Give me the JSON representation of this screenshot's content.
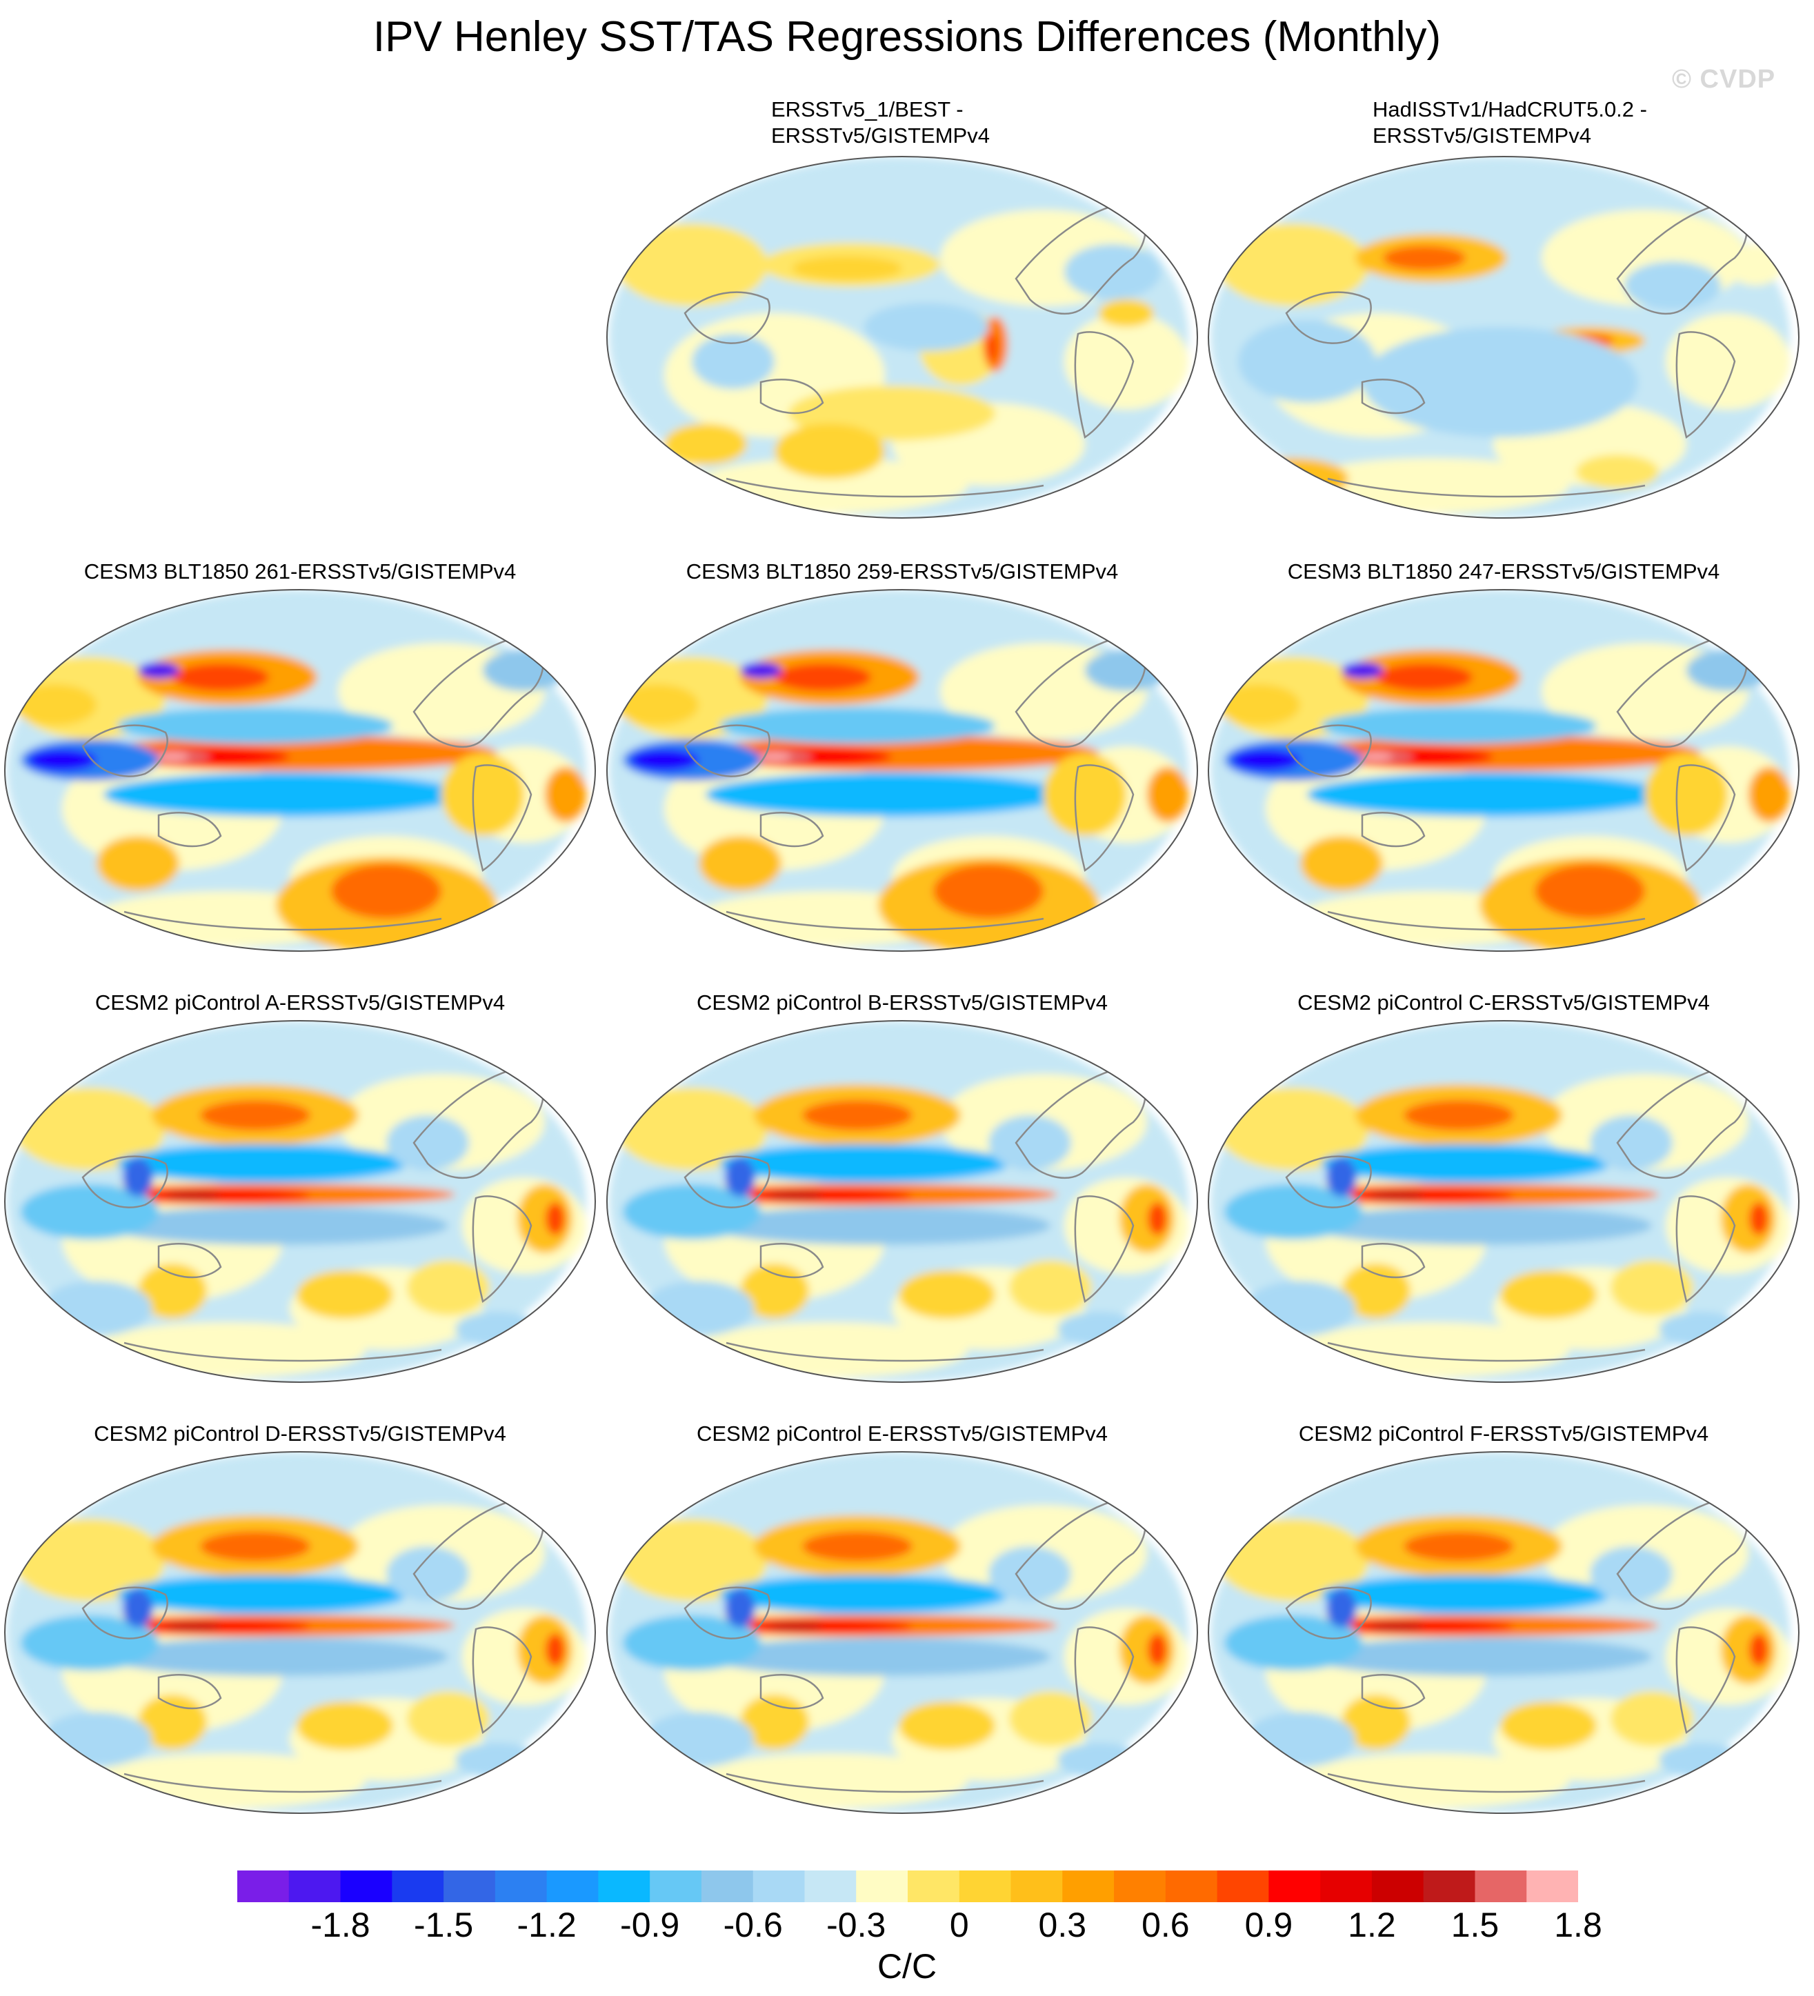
{
  "title": "IPV Henley SST/TAS Regressions Differences (Monthly)",
  "watermark": "© CVDP",
  "colorbar": {
    "units": "C/C",
    "tick_labels": [
      "-1.8",
      "-1.5",
      "-1.2",
      "-0.9",
      "-0.6",
      "-0.3",
      "0",
      "0.3",
      "0.6",
      "0.9",
      "1.2",
      "1.5",
      "1.8"
    ],
    "colors": [
      "#7a1ee8",
      "#4d18f0",
      "#1a00ff",
      "#1a3bf0",
      "#3366e6",
      "#2c80f2",
      "#1a99ff",
      "#0ab8ff",
      "#66c8f5",
      "#8ec7ec",
      "#a9d9f5",
      "#c6e7f5",
      "#fffcc4",
      "#ffe666",
      "#ffd433",
      "#ffbf1a",
      "#ff9f00",
      "#ff8000",
      "#ff6a00",
      "#ff4500",
      "#ff0000",
      "#e60000",
      "#cc0000",
      "#bf1a1a",
      "#e66666",
      "#ffb3b3"
    ]
  },
  "panels": [
    {
      "title_lines": [
        "ERSSTv5_1/BEST -",
        "ERSSTv5/GISTEMPv4"
      ],
      "pattern": "obs1"
    },
    {
      "title_lines": [
        "HadISSTv1/HadCRUT5.0.2 -",
        "ERSSTv5/GISTEMPv4"
      ],
      "pattern": "obs2"
    },
    {
      "title_lines": [
        "CESM3 BLT1850 261-ERSSTv5/GISTEMPv4"
      ],
      "pattern": "blt"
    },
    {
      "title_lines": [
        "CESM3 BLT1850 259-ERSSTv5/GISTEMPv4"
      ],
      "pattern": "blt"
    },
    {
      "title_lines": [
        "CESM3 BLT1850 247-ERSSTv5/GISTEMPv4"
      ],
      "pattern": "blt"
    },
    {
      "title_lines": [
        "CESM2 piControl A-ERSSTv5/GISTEMPv4"
      ],
      "pattern": "pic"
    },
    {
      "title_lines": [
        "CESM2 piControl B-ERSSTv5/GISTEMPv4"
      ],
      "pattern": "pic"
    },
    {
      "title_lines": [
        "CESM2 piControl C-ERSSTv5/GISTEMPv4"
      ],
      "pattern": "pic"
    },
    {
      "title_lines": [
        "CESM2 piControl D-ERSSTv5/GISTEMPv4"
      ],
      "pattern": "pic"
    },
    {
      "title_lines": [
        "CESM2 piControl E-ERSSTv5/GISTEMPv4"
      ],
      "pattern": "pic"
    },
    {
      "title_lines": [
        "CESM2 piControl F-ERSSTv5/GISTEMPv4"
      ],
      "pattern": "pic"
    }
  ]
}
